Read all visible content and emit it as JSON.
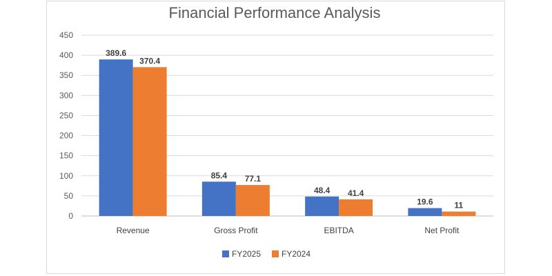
{
  "chart_data": {
    "type": "bar",
    "title": "Financial Performance Analysis",
    "xlabel": "",
    "ylabel": "",
    "categories": [
      "Revenue",
      "Gross Profit",
      "EBITDA",
      "Net Profit"
    ],
    "series": [
      {
        "name": "FY2025",
        "color": "#4472c4",
        "values": [
          389.6,
          85.4,
          48.4,
          19.6
        ],
        "labels": [
          "389.6",
          "85.4",
          "48.4",
          "19.6"
        ]
      },
      {
        "name": "FY2024",
        "color": "#ed7d31",
        "values": [
          370.4,
          77.1,
          41.4,
          11
        ],
        "labels": [
          "370.4",
          "77.1",
          "41.4",
          "11"
        ]
      }
    ],
    "ylim": [
      0,
      450
    ],
    "yticks": [
      0,
      50,
      100,
      150,
      200,
      250,
      300,
      350,
      400,
      450
    ],
    "grid": true,
    "legend_position": "bottom"
  }
}
